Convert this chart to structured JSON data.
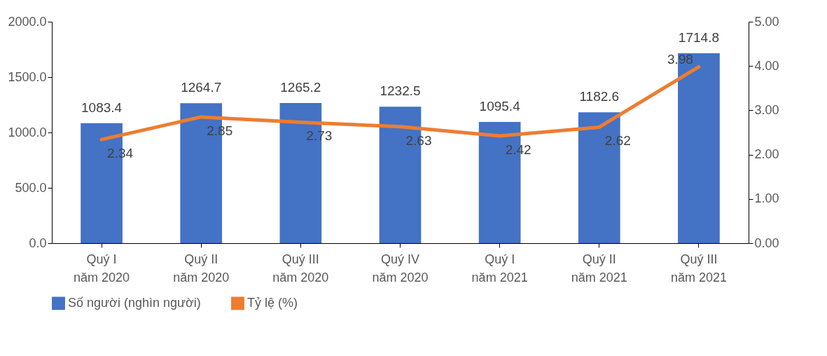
{
  "chart_data": {
    "type": "bar",
    "categories": [
      "Quý I\nnăm 2020",
      "Quý II\nnăm 2020",
      "Quý III\nnăm 2020",
      "Quý IV\nnăm 2020",
      "Quý I\nnăm 2021",
      "Quý II\nnăm 2021",
      "Quý III\nnăm 2021"
    ],
    "series": [
      {
        "name": "Số người (nghìn người)",
        "color": "#4472c4",
        "values": [
          1083.4,
          1264.7,
          1265.2,
          1232.5,
          1095.4,
          1182.6,
          1714.8
        ]
      },
      {
        "name": "Tỷ lệ (%)",
        "type": "line",
        "axis": "y2",
        "color": "#ed7d31",
        "values": [
          2.34,
          2.85,
          2.73,
          2.63,
          2.42,
          2.62,
          3.98
        ]
      }
    ],
    "ylim": [
      0,
      2000
    ],
    "yticks": [
      {
        "value": 0,
        "label": "0.0"
      },
      {
        "value": 500,
        "label": "500.0"
      },
      {
        "value": 1000,
        "label": "1000.0"
      },
      {
        "value": 1500,
        "label": "1500.0"
      },
      {
        "value": 2000,
        "label": "2000.0"
      }
    ],
    "y2lim": [
      0,
      5
    ],
    "y2ticks": [
      {
        "value": 0,
        "label": "0.00"
      },
      {
        "value": 1,
        "label": "1.00"
      },
      {
        "value": 2,
        "label": "2.00"
      },
      {
        "value": 3,
        "label": "3.00"
      },
      {
        "value": 4,
        "label": "4.00"
      },
      {
        "value": 5,
        "label": "5.00"
      }
    ],
    "data_labels": true,
    "legend": "bottom"
  }
}
